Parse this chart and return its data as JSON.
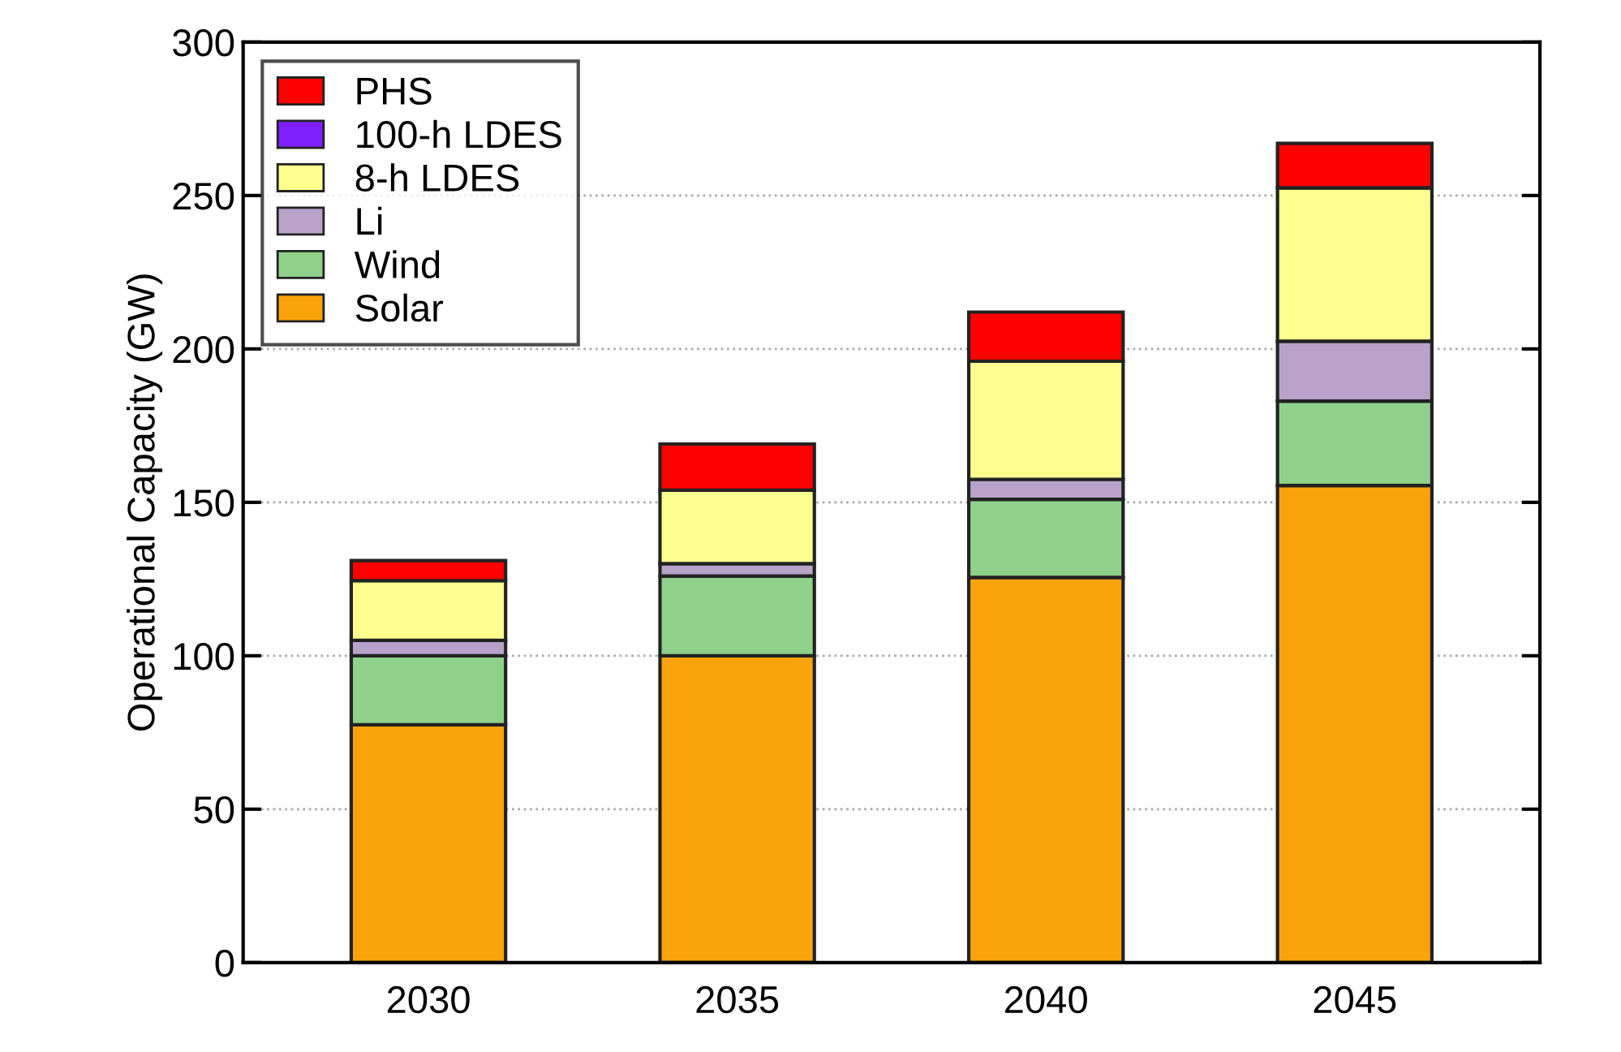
{
  "chart_data": {
    "type": "bar",
    "stacked": true,
    "ylabel": "Operational Capacity (GW)",
    "categories": [
      "2030",
      "2035",
      "2040",
      "2045"
    ],
    "series": [
      {
        "name": "Solar",
        "color": "#fba30b",
        "values": [
          77.5,
          100,
          125.5,
          155.5
        ]
      },
      {
        "name": "Wind",
        "color": "#8fd18b",
        "values": [
          22.5,
          26,
          25.5,
          27.5
        ]
      },
      {
        "name": "Li",
        "color": "#b8a2c9",
        "values": [
          5,
          4,
          6.5,
          19.5
        ]
      },
      {
        "name": "8-h LDES",
        "color": "#ffff8f",
        "values": [
          19.5,
          24,
          38.5,
          50
        ]
      },
      {
        "name": "100-h LDES",
        "color": "#7f1fff",
        "values": [
          0,
          0,
          0,
          0
        ]
      },
      {
        "name": "PHS",
        "color": "#ff0000",
        "values": [
          6.5,
          15,
          16,
          14.5
        ]
      }
    ],
    "ylim": [
      0,
      300
    ],
    "yticks": [
      0,
      50,
      100,
      150,
      200,
      250,
      300
    ],
    "grid": "y",
    "legend": "top left"
  }
}
